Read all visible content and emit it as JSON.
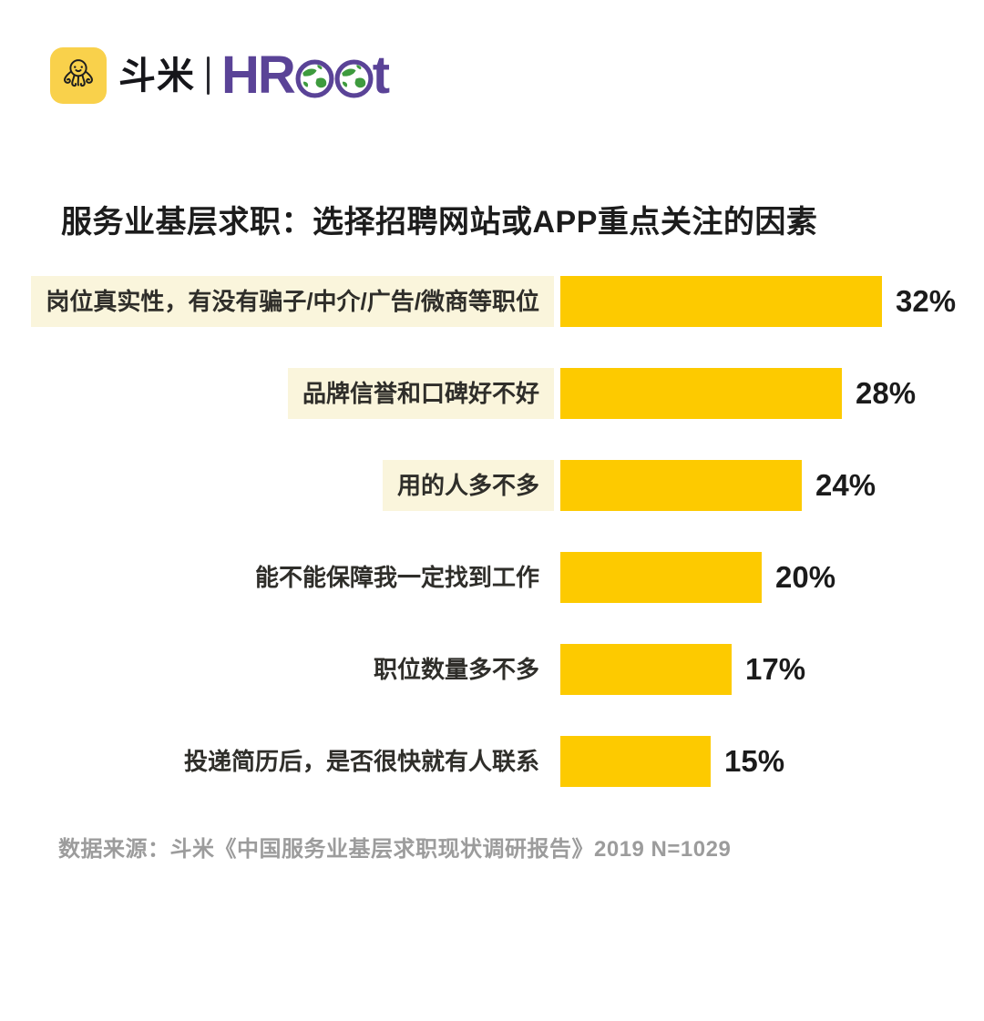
{
  "logo": {
    "doumi_text": "斗米",
    "hroot_part1": "HR",
    "hroot_part2": "t",
    "colors": {
      "icon_bg": "#F9D14B",
      "hroot_purple": "#5A4397",
      "globe_green": "#3E9B3E"
    }
  },
  "title": "服务业基层求职：选择招聘网站或APP重点关注的因素",
  "chart_data": {
    "type": "bar",
    "orientation": "horizontal",
    "title": "服务业基层求职：选择招聘网站或APP重点关注的因素",
    "categories": [
      "岗位真实性，有没有骗子/中介/广告/微商等职位",
      "品牌信誉和口碑好不好",
      "用的人多不多",
      "能不能保障我一定找到工作",
      "职位数量多不多",
      "投递简历后，是否很快就有人联系"
    ],
    "values": [
      32,
      28,
      24,
      20,
      17,
      15
    ],
    "value_labels": [
      "32%",
      "28%",
      "24%",
      "20%",
      "17%",
      "15%"
    ],
    "highlighted_label_rows": [
      0,
      1,
      2
    ],
    "xlim": [
      0,
      32
    ],
    "grid": false,
    "legend": false,
    "bar_color": "#FDCA00",
    "label_highlight_color": "#FAF5DC"
  },
  "source": "数据来源：斗米《中国服务业基层求职现状调研报告》2019 N=1029"
}
